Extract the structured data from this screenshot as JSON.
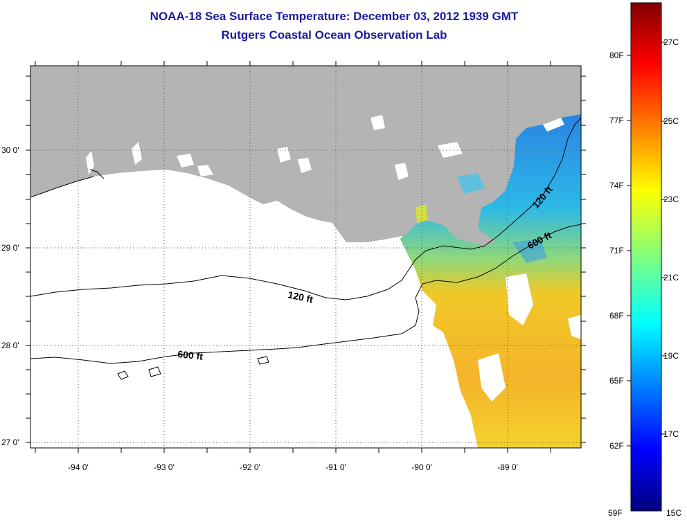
{
  "title": "NOAA-18 Sea Surface Temperature:  December 03, 2012 1939 GMT",
  "subtitle": "Rutgers Coastal Ocean Observation Lab",
  "lat_labels": [
    "30 0'",
    "29 0'",
    "28 0'",
    "27 0'"
  ],
  "lon_labels": [
    "-94 0'",
    "-93 0'",
    "-92 0'",
    "-91 0'",
    "-90 0'",
    "-89 0'"
  ],
  "contours": {
    "c120_west": "120 ft",
    "c600_west": "600 ft",
    "c120_east": "120 ft",
    "c600_east": "600 ft"
  },
  "colorbar": {
    "fahrenheit": [
      "80F",
      "77F",
      "74F",
      "71F",
      "68F",
      "65F",
      "62F",
      "59F"
    ],
    "celsius": [
      "27C",
      "25C",
      "23C",
      "21C",
      "19C",
      "17C",
      "15C"
    ]
  },
  "colors": {
    "land": "#b4b4b4",
    "title": "#1a1aa0"
  }
}
